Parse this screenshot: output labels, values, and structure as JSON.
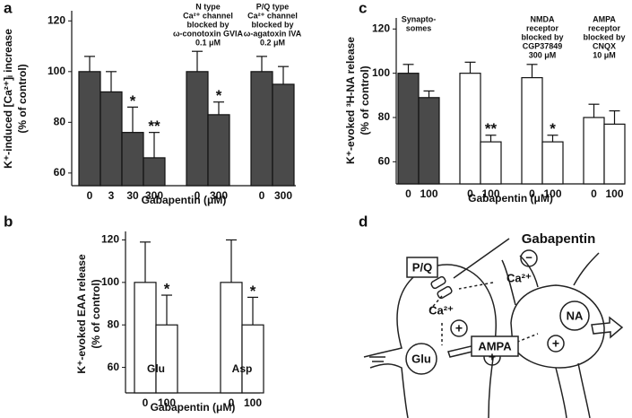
{
  "chart_data": [
    {
      "type": "bar",
      "panel_label": "a",
      "y_label": [
        "K⁺-induced [Ca²⁺]ᵢ increase",
        "(% of control)"
      ],
      "x_label": "Gabapentin (μM)",
      "categories": [
        "0",
        "3",
        "30",
        "300",
        null,
        "0",
        "300",
        null,
        "0",
        "300"
      ],
      "values": [
        100,
        92,
        76,
        66,
        null,
        100,
        83,
        null,
        100,
        95
      ],
      "errors": [
        6,
        8,
        10,
        10,
        null,
        8,
        5,
        null,
        6,
        7
      ],
      "colors": [
        "#4a4a4a",
        "#4a4a4a",
        "#4a4a4a",
        "#4a4a4a",
        null,
        "#4a4a4a",
        "#4a4a4a",
        null,
        "#4a4a4a",
        "#4a4a4a"
      ],
      "significance": [
        null,
        null,
        "*",
        "**",
        null,
        null,
        "*",
        null,
        null,
        null
      ],
      "groups": [
        {
          "label": [
            "N type",
            "Ca²⁺ channel",
            "blocked by",
            "ω-conotoxin GVIA",
            "0.1 μM"
          ],
          "first": 5,
          "last": 6
        },
        {
          "label": [
            "P/Q type",
            "Ca²⁺ channel",
            "blocked by",
            "ω-agatoxin IVA",
            "0.2 μM"
          ],
          "first": 8,
          "last": 9
        }
      ],
      "ylim": [
        55,
        124
      ],
      "yticks": [
        60,
        80,
        100,
        120
      ]
    },
    {
      "type": "bar",
      "panel_label": "b",
      "y_label": [
        "K⁺-evoked EAA release",
        "(% of control)"
      ],
      "x_label": "Gabapentin (μM)",
      "categories": [
        "0",
        "100",
        null,
        null,
        "0",
        "100"
      ],
      "values": [
        100,
        80,
        null,
        null,
        100,
        80
      ],
      "errors": [
        19,
        14,
        null,
        null,
        20,
        13
      ],
      "colors": [
        "#ffffff",
        "#ffffff",
        null,
        null,
        "#ffffff",
        "#ffffff"
      ],
      "significance": [
        null,
        "*",
        null,
        null,
        null,
        "*"
      ],
      "groups": [
        {
          "label": [
            "Glu"
          ],
          "first": 0,
          "last": 1
        },
        {
          "label": [
            "Asp"
          ],
          "first": 4,
          "last": 5
        }
      ],
      "group_label_position": "inside",
      "ylim": [
        48,
        124
      ],
      "yticks": [
        60,
        80,
        100,
        120
      ]
    },
    {
      "type": "bar",
      "panel_label": "c",
      "y_label": [
        "K⁺-evoked ³H-NA release",
        "(% of control)"
      ],
      "x_label": "Gabapentin (μM)",
      "categories": [
        "0",
        "100",
        null,
        "0",
        "100",
        null,
        "0",
        "100",
        null,
        "0",
        "100"
      ],
      "values": [
        100,
        89,
        null,
        100,
        69,
        null,
        98,
        69,
        null,
        80,
        77
      ],
      "errors": [
        4,
        3,
        null,
        5,
        3,
        null,
        6,
        3,
        null,
        6,
        6
      ],
      "colors": [
        "#4a4a4a",
        "#4a4a4a",
        null,
        "#ffffff",
        "#ffffff",
        null,
        "#ffffff",
        "#ffffff",
        null,
        "#ffffff",
        "#ffffff"
      ],
      "significance": [
        null,
        null,
        null,
        null,
        "**",
        null,
        null,
        "*",
        null,
        null,
        null
      ],
      "groups": [
        {
          "label": [
            "Synapto-",
            "somes"
          ],
          "first": 0,
          "last": 1
        },
        {
          "label": [
            "NMDA",
            "receptor",
            "blocked by",
            "CGP37849",
            "300 μM"
          ],
          "first": 6,
          "last": 7
        },
        {
          "label": [
            "AMPA",
            "receptor",
            "blocked by",
            "CNQX",
            "10 μM"
          ],
          "first": 9,
          "last": 10
        }
      ],
      "ylim": [
        50,
        125
      ],
      "yticks": [
        60,
        80,
        100,
        120
      ]
    }
  ],
  "diagram": {
    "panel_label": "d",
    "drug": "Gabapentin",
    "channel": "P/Q",
    "inhibit": "−",
    "ca_out": "Ca²⁺",
    "ca_in": "Ca²⁺",
    "plus_ca": "+",
    "glu": "Glu",
    "ampa": "AMPA",
    "plus_ampa": "+",
    "na": "NA",
    "plus_na": "+"
  }
}
